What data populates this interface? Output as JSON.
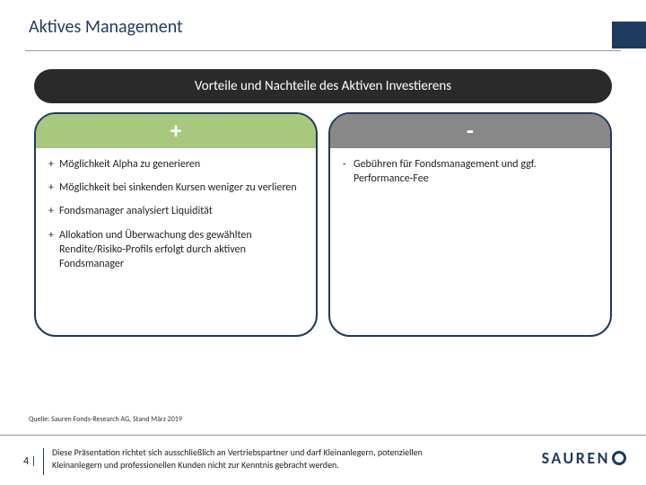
{
  "title": "Aktives Management",
  "section_title": "Vorteile und Nachteile des Aktiven Investierens",
  "columns": {
    "plus": {
      "symbol": "+",
      "bg": "#a8c87d",
      "items": [
        "Möglichkeit Alpha zu generieren",
        "Möglichkeit bei sinkenden Kursen weniger zu verlieren",
        "Fondsmanager analysiert Liquidität",
        "Allokation und Überwachung des gewählten Rendite/Risiko-Profils erfolgt durch aktiven Fondsmanager"
      ]
    },
    "minus": {
      "symbol": "-",
      "bg": "#888888",
      "items": [
        "Gebühren für Fondsmanagement und ggf. Performance-Fee"
      ]
    }
  },
  "source": "Quelle: Sauren Fonds-Research AG, Stand März 2019",
  "page": "4 |",
  "disclaimer": "Diese Präsentation richtet sich ausschließlich an Vertriebspartner und darf Kleinanlegern, potenziellen Kleinanlegern und professionellen Kunden nicht zur Kenntnis gebracht werden.",
  "logo_text": "SAUREN",
  "colors": {
    "brand": "#1e3a5f"
  }
}
